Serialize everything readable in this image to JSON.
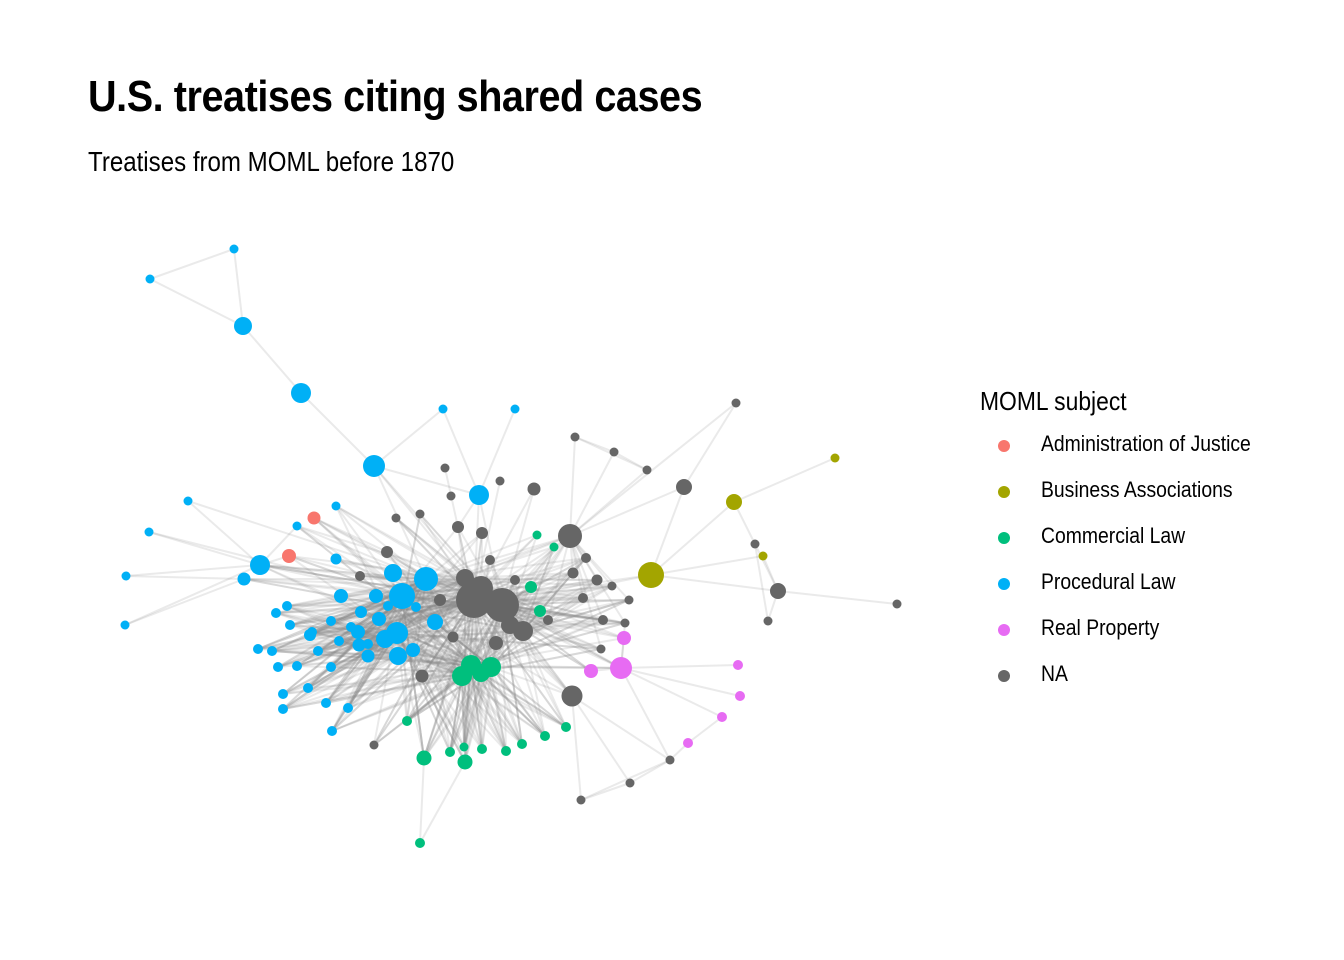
{
  "chart": {
    "title": "U.S. treatises citing shared cases",
    "subtitle": "Treatises from MOML before 1870"
  },
  "legend": {
    "title": "MOML subject",
    "items": [
      {
        "label": "Administration of Justice",
        "color": "#F8766D"
      },
      {
        "label": "Business Associations",
        "color": "#A3A500"
      },
      {
        "label": "Commercial Law",
        "color": "#00BF7D"
      },
      {
        "label": "Procedural Law",
        "color": "#00B0F6"
      },
      {
        "label": "Real Property",
        "color": "#E76BF3"
      },
      {
        "label": "NA",
        "color": "#666666"
      }
    ]
  },
  "chart_data": {
    "type": "network",
    "title": "U.S. treatises citing shared cases",
    "subtitle": "Treatises from MOML before 1870",
    "legend_title": "MOML subject",
    "legend_position": "right",
    "edge_color": "#bbbbbb",
    "node_count_by_category": {
      "Administration of Justice": 2,
      "Business Associations": 3,
      "Commercial Law": 20,
      "Procedural Law": 55,
      "Real Property": 7,
      "NA": 47
    }
  }
}
